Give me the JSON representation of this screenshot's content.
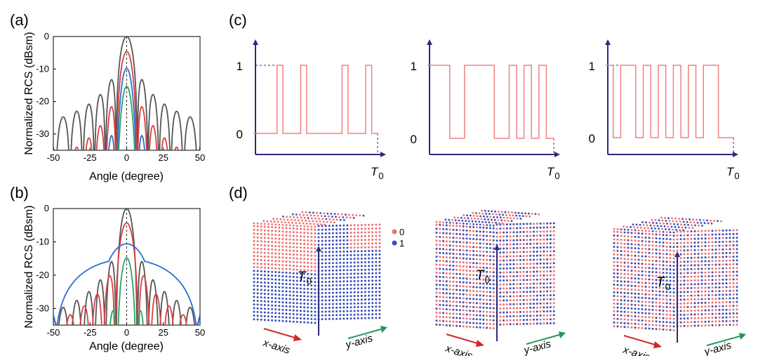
{
  "panel_labels": {
    "a": "(a)",
    "b": "(b)",
    "c": "(c)",
    "d": "(d)"
  },
  "colors": {
    "gray": "#555555",
    "red": "#d94040",
    "blue": "#2f6fce",
    "green": "#2aa36a",
    "pulse": "#f08080",
    "axis": "#2b2b7a",
    "state0": "#f07070",
    "state1": "#3a50b8"
  },
  "chart_data": [
    {
      "type": "line",
      "panel": "a",
      "xlabel": "Angle (degree)",
      "ylabel": "Normalized RCS (dBsm)",
      "xlim": [
        -50,
        50
      ],
      "ylim": [
        -35,
        0
      ],
      "xticks": [
        -50,
        -25,
        0,
        25,
        50
      ],
      "yticks": [
        0,
        -10,
        -20,
        -30
      ],
      "series": [
        {
          "name": "gray",
          "color": "#555555",
          "peak": 0,
          "sidelobe_peaks": [
            -26.5,
            -23.5,
            -20.5,
            -23.5,
            -26.5
          ],
          "floor": -35
        },
        {
          "name": "red",
          "color": "#d94040",
          "peak": -4.6,
          "sidelobe_peaks": [
            -31,
            -28,
            -25,
            -28,
            -31
          ],
          "floor": -35
        },
        {
          "name": "blue",
          "color": "#2f6fce",
          "peak": -9.8,
          "sidelobe_peaks": [
            -34,
            -33.5,
            -30,
            -33.5,
            -34
          ],
          "floor": -35
        },
        {
          "name": "green",
          "color": "#2aa36a",
          "peak": -15.3,
          "sidelobe_peaks": [
            -35,
            -35,
            -34,
            -35,
            -35
          ],
          "floor": -35
        }
      ]
    },
    {
      "type": "line",
      "panel": "b",
      "xlabel": "Angle (degree)",
      "ylabel": "Normalized RCS (dBsm)",
      "xlim": [
        -50,
        50
      ],
      "ylim": [
        -35,
        0
      ],
      "xticks": [
        -50,
        -25,
        0,
        25,
        50
      ],
      "yticks": [
        0,
        -10,
        -20,
        -30
      ],
      "series": [
        {
          "name": "gray",
          "color": "#555555",
          "peak": 0
        },
        {
          "name": "red",
          "color": "#d94040",
          "peak": -4.3
        },
        {
          "name": "blue",
          "color": "#2f6fce",
          "peak": -10.6
        },
        {
          "name": "green",
          "color": "#2aa36a",
          "peak": -14.8
        }
      ]
    },
    {
      "type": "line",
      "panel": "c",
      "description": "three binary time-modulation sequences over period T0",
      "yticks": [
        "0",
        "1"
      ],
      "xlabel": "T0",
      "sequences": [
        [
          0,
          0,
          0,
          0,
          1,
          0,
          0,
          0,
          1,
          0,
          0,
          0,
          0,
          0,
          0,
          1,
          0,
          0,
          0,
          1,
          0
        ],
        [
          1,
          1,
          1,
          0,
          0,
          1,
          1,
          1,
          1,
          0,
          0,
          1,
          0,
          1,
          0,
          1,
          0
        ],
        [
          1,
          0,
          1,
          1,
          0,
          1,
          0,
          1,
          0,
          1,
          0,
          1,
          0,
          1,
          1,
          0,
          0
        ]
      ]
    }
  ],
  "panel_c": {
    "y_one": "1",
    "y_zero": "0",
    "x_label_main": "T",
    "x_label_sub": "0"
  },
  "panel_d": {
    "legend": [
      {
        "label": "0"
      },
      {
        "label": "1"
      }
    ],
    "x_axis": "x-axis",
    "y_axis": "y-axis",
    "t_label_main": "T",
    "t_label_sub": "0"
  }
}
